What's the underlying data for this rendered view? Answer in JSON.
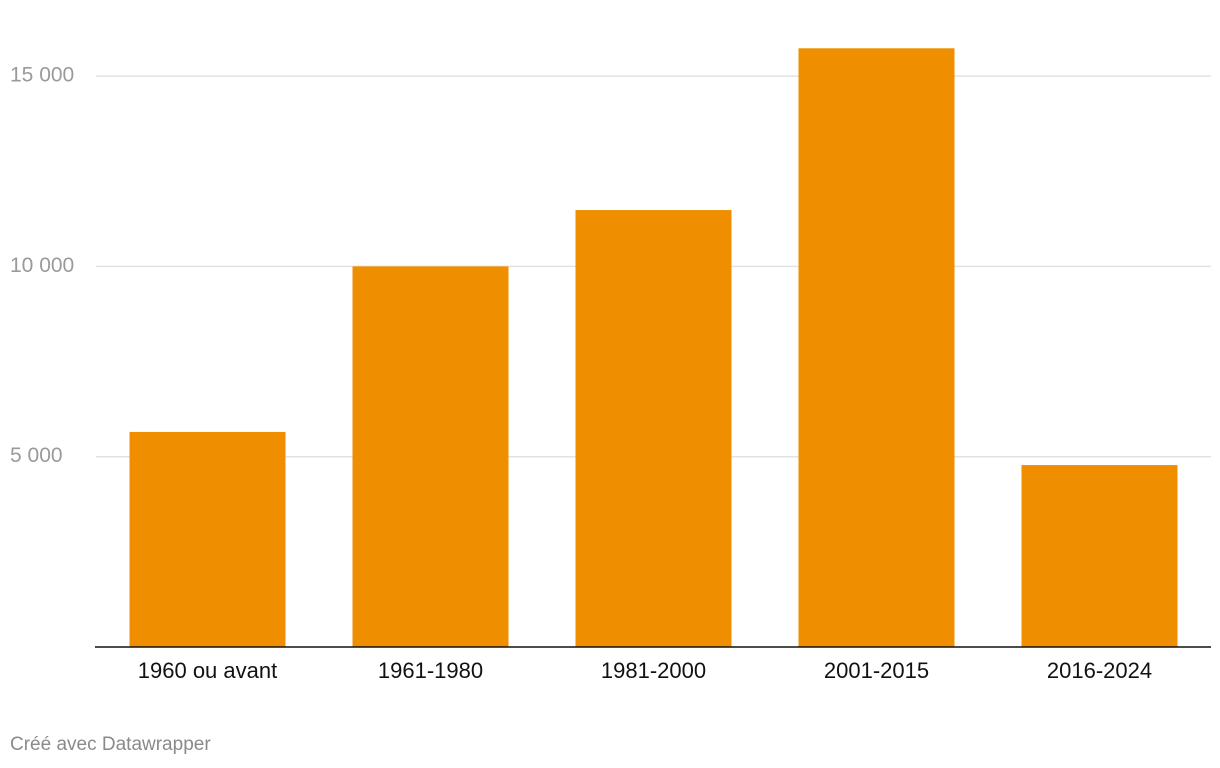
{
  "chart_data": {
    "type": "bar",
    "categories": [
      "1960 ou avant",
      "1961-1980",
      "1981-2000",
      "2001-2015",
      "2016-2024"
    ],
    "values": [
      5650,
      10000,
      11480,
      15730,
      4780
    ],
    "color": "#ef8f00",
    "ylim": [
      0,
      16000
    ],
    "yticks": [
      {
        "value": 5000,
        "label": "5 000"
      },
      {
        "value": 10000,
        "label": "10 000"
      },
      {
        "value": 15000,
        "label": "15 000"
      }
    ],
    "grid": true,
    "footer": "Créé avec Datawrapper"
  }
}
